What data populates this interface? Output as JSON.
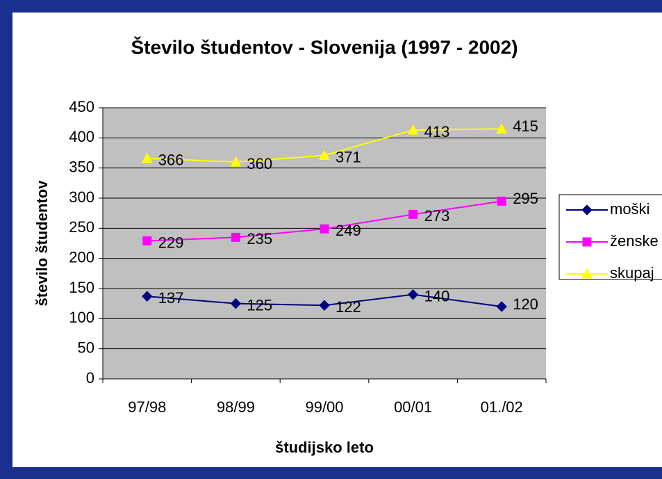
{
  "chart_data": {
    "type": "line",
    "title": "Število študentov - Slovenija (1997 - 2002)",
    "x_label": "študijsko leto",
    "y_label": "število študentov",
    "categories": [
      "97/98",
      "98/99",
      "99/00",
      "00/01",
      "01./02"
    ],
    "series": [
      {
        "name": "moški",
        "color": "#000080",
        "marker": "diamond",
        "values": [
          137,
          125,
          122,
          140,
          120
        ]
      },
      {
        "name": "ženske",
        "color": "#ff00ff",
        "marker": "square",
        "values": [
          229,
          235,
          249,
          273,
          295
        ]
      },
      {
        "name": "skupaj",
        "color": "#ffff00",
        "marker": "triangle",
        "values": [
          366,
          360,
          371,
          413,
          415
        ]
      }
    ],
    "ylim": [
      0,
      450
    ],
    "yticks": [
      0,
      50,
      100,
      150,
      200,
      250,
      300,
      350,
      400,
      450
    ],
    "grid": true,
    "legend": "right"
  }
}
